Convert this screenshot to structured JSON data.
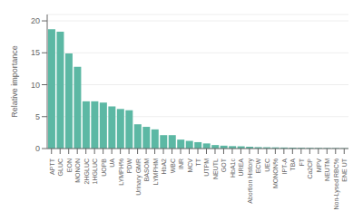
{
  "chart_data": {
    "type": "bar",
    "categories": [
      "APTT",
      "GLUC",
      "EON",
      "MONON",
      "2HGLUC",
      "1HGLUC",
      "UOPB",
      "UA",
      "LYMPH%",
      "PDW",
      "Urinary GMR",
      "BASOM",
      "LYMPHM",
      "HbA2",
      "WBC",
      "INR",
      "MCV",
      "TT",
      "UTPM",
      "NEUTL",
      "GOT",
      "HbA1c",
      "UREA",
      "Abortion History",
      "ECW",
      "UEC",
      "MONON%",
      "IPT-A",
      "TBA",
      "FT",
      "Ca2CP",
      "MPV",
      "NEUTM",
      "Non-Lysed RBC%",
      "ENE UT"
    ],
    "values": [
      18.7,
      18.3,
      14.9,
      12.8,
      7.4,
      7.4,
      7.2,
      6.6,
      6.2,
      6.0,
      3.8,
      3.4,
      3.0,
      2.1,
      2.1,
      1.4,
      1.2,
      1.0,
      0.8,
      0.55,
      0.45,
      0.38,
      0.35,
      0.28,
      0.22,
      0.2,
      0.18,
      0.16,
      0.14,
      0.12,
      0.1,
      0.09,
      0.08,
      0.07,
      0.05
    ],
    "color": "#5CB8A4",
    "ylabel": "Relative importance",
    "ylim": [
      0,
      21
    ],
    "yticks": [
      0,
      5,
      10,
      15,
      20
    ],
    "grid": true
  }
}
